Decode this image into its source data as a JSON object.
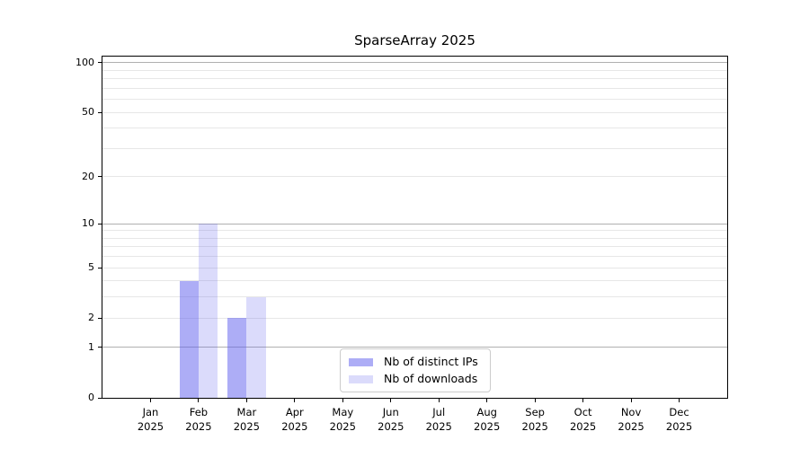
{
  "chart_data": {
    "type": "bar",
    "title": "SparseArray 2025",
    "categories": [
      "Jan",
      "Feb",
      "Mar",
      "Apr",
      "May",
      "Jun",
      "Jul",
      "Aug",
      "Sep",
      "Oct",
      "Nov",
      "Dec"
    ],
    "category_year": "2025",
    "series": [
      {
        "name": "Nb of distinct IPs",
        "color": "rgba(92,92,237,0.50)",
        "values": [
          0,
          4,
          2,
          0,
          0,
          0,
          0,
          0,
          0,
          0,
          0,
          0
        ]
      },
      {
        "name": "Nb of downloads",
        "color": "rgba(92,92,237,0.22)",
        "values": [
          0,
          10,
          3,
          0,
          0,
          0,
          0,
          0,
          0,
          0,
          0,
          0
        ]
      }
    ],
    "yscale": "log10(1+y)",
    "ylim": [
      0,
      112
    ],
    "yticks": [
      0,
      1,
      2,
      5,
      10,
      20,
      50,
      100
    ],
    "major_gridlines": [
      1,
      10,
      100
    ],
    "minor_gridlines": [
      2,
      3,
      4,
      5,
      6,
      7,
      8,
      9,
      20,
      30,
      40,
      50,
      60,
      70,
      80,
      90
    ],
    "xlabel": "",
    "ylabel": "",
    "legend_position": "lower center",
    "colors": {
      "axis": "#000000",
      "grid_major": "#b0b0b0",
      "grid_minor": "#e7e7e7",
      "legend_border": "#cccccc",
      "background": "#ffffff"
    }
  }
}
